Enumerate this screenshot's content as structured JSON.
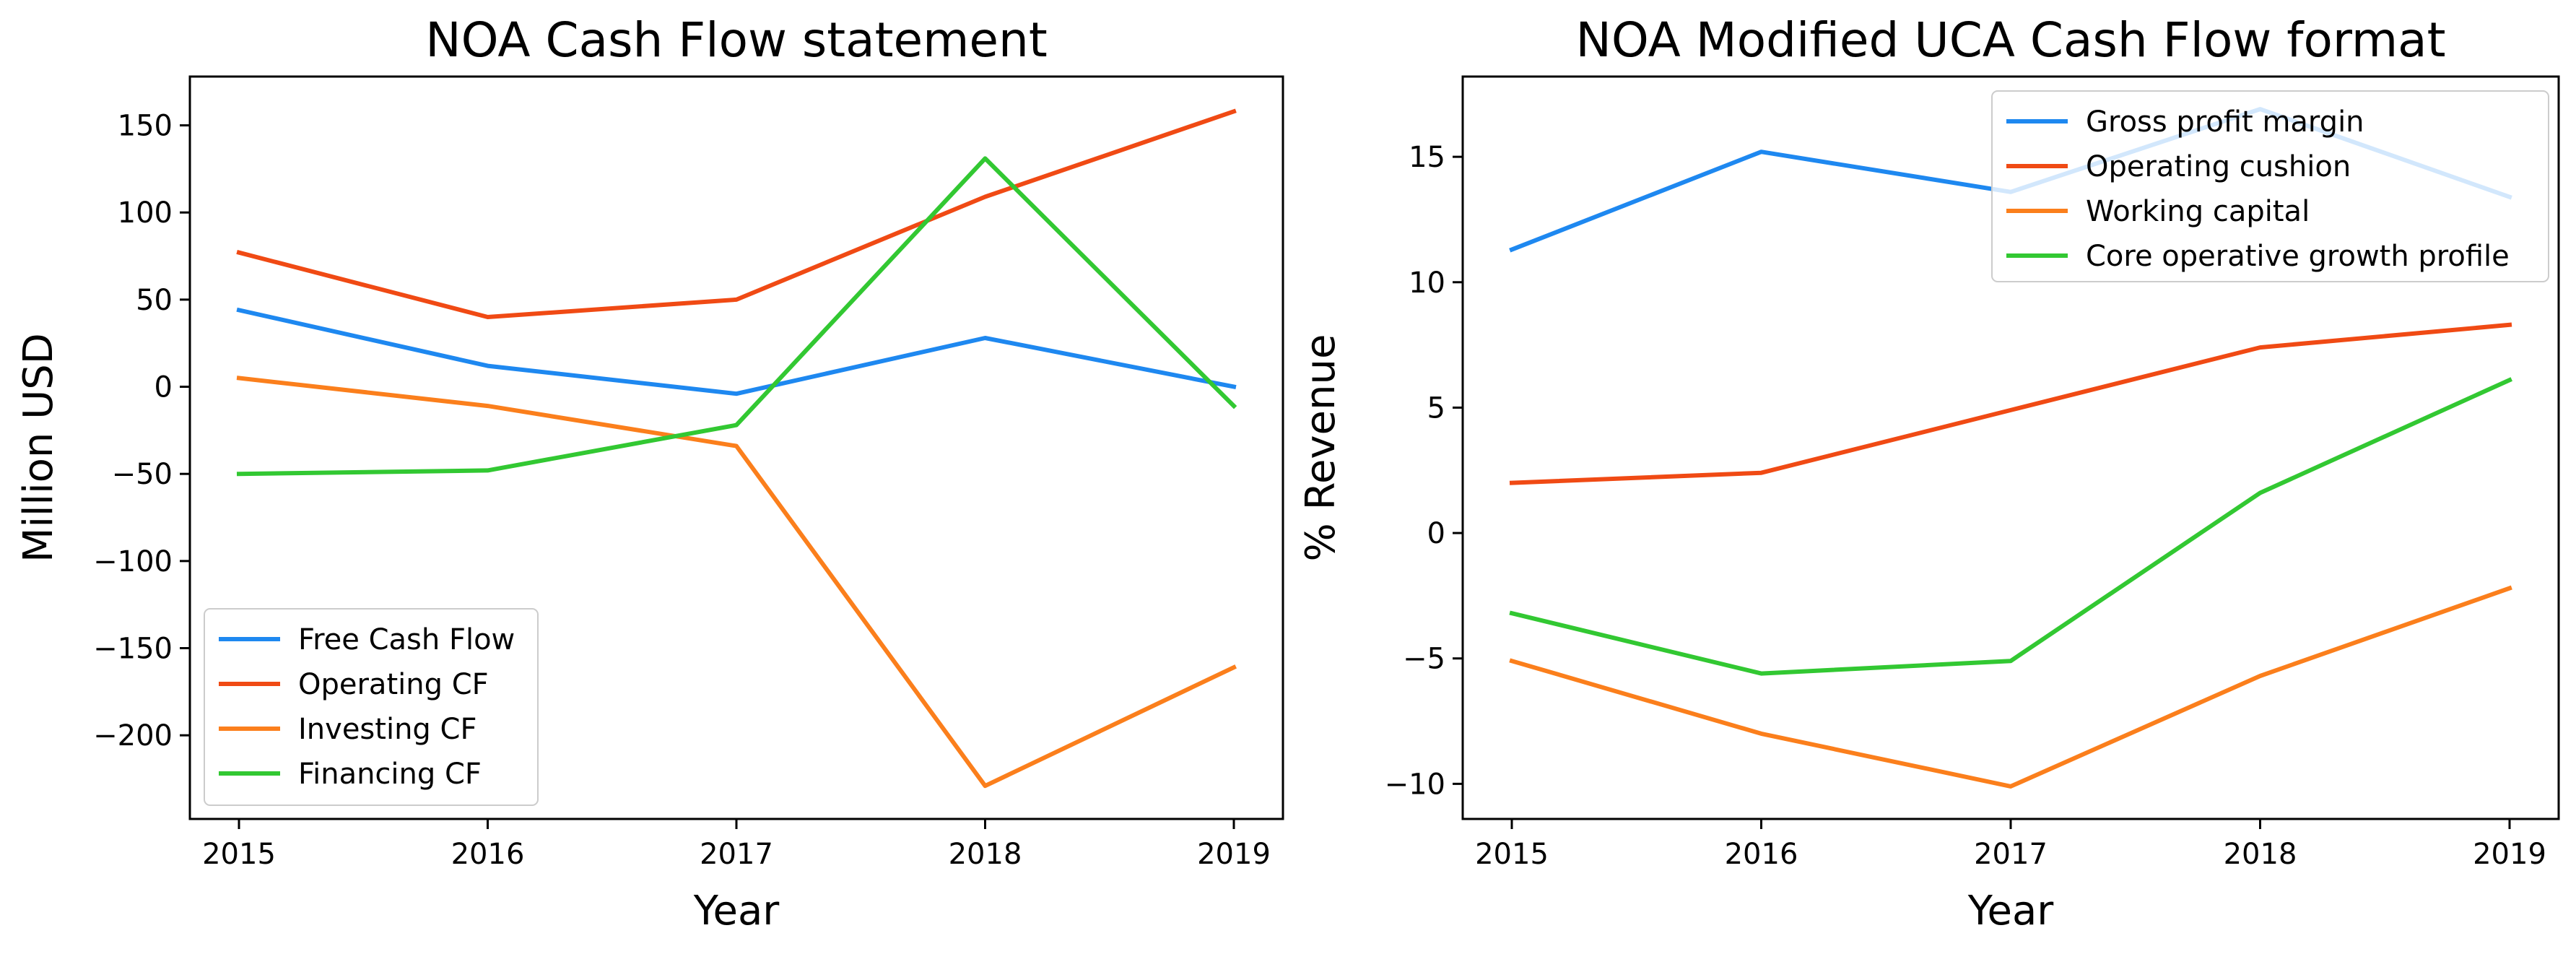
{
  "chart_data": [
    {
      "type": "line",
      "title": "NOA Cash Flow statement",
      "xlabel": "Year",
      "ylabel": "Million USD",
      "x": [
        "2015",
        "2016",
        "2017",
        "2018",
        "2019"
      ],
      "ylim": [
        -248,
        178
      ],
      "yticks": [
        150,
        100,
        50,
        0,
        -50,
        -100,
        -150,
        -200
      ],
      "ytick_labels": [
        "150",
        "100",
        "50",
        "0",
        "−50",
        "−100",
        "−150",
        "−200"
      ],
      "legend_position": "lower-left",
      "series": [
        {
          "name": "Free Cash Flow",
          "color": "#1e88f0",
          "values": [
            44,
            12,
            -4,
            28,
            0
          ]
        },
        {
          "name": "Operating CF",
          "color": "#f04a14",
          "values": [
            77,
            40,
            50,
            109,
            158
          ]
        },
        {
          "name": "Investing CF",
          "color": "#fb7f1c",
          "values": [
            5,
            -11,
            -34,
            -229,
            -161
          ]
        },
        {
          "name": "Financing CF",
          "color": "#32c832",
          "values": [
            -50,
            -48,
            -22,
            131,
            -11
          ]
        }
      ]
    },
    {
      "type": "line",
      "title": "NOA Modified UCA Cash Flow format",
      "xlabel": "Year",
      "ylabel": "% Revenue",
      "x": [
        "2015",
        "2016",
        "2017",
        "2018",
        "2019"
      ],
      "ylim": [
        -11.4,
        18.2
      ],
      "yticks": [
        15,
        10,
        5,
        0,
        -5,
        -10
      ],
      "ytick_labels": [
        "15",
        "10",
        "5",
        "0",
        "−5",
        "−10"
      ],
      "legend_position": "upper-right",
      "series": [
        {
          "name": "Gross profit margin",
          "color": "#1e88f0",
          "values": [
            11.3,
            15.2,
            13.6,
            16.9,
            13.4
          ]
        },
        {
          "name": "Operating cushion",
          "color": "#f04a14",
          "values": [
            2.0,
            2.4,
            4.9,
            7.4,
            8.3
          ]
        },
        {
          "name": "Working capital",
          "color": "#fb7f1c",
          "values": [
            -5.1,
            -8.0,
            -10.1,
            -5.7,
            -2.2
          ]
        },
        {
          "name": "Core operative growth profile",
          "color": "#32c832",
          "values": [
            -3.2,
            -5.6,
            -5.1,
            1.6,
            6.1
          ]
        }
      ]
    }
  ]
}
